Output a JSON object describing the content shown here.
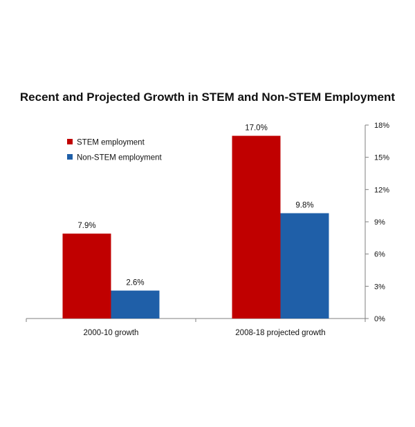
{
  "chart_data": {
    "type": "bar",
    "title": "Recent and Projected Growth in STEM and Non-STEM Employment",
    "categories": [
      "2000-10 growth",
      "2008-18 projected growth"
    ],
    "series": [
      {
        "name": "STEM employment",
        "values": [
          7.9,
          17.0
        ],
        "labels": [
          "7.9%",
          "17.0%"
        ],
        "color": "#c00000"
      },
      {
        "name": "Non-STEM employment",
        "values": [
          2.6,
          9.8
        ],
        "labels": [
          "2.6%",
          "9.8%"
        ],
        "color": "#1f5fa8"
      }
    ],
    "ylim": [
      0,
      18
    ],
    "yticks": [
      0,
      3,
      6,
      9,
      12,
      15,
      18
    ],
    "ytick_labels": [
      "0%",
      "3%",
      "6%",
      "9%",
      "12%",
      "15%",
      "18%"
    ],
    "y_axis_side": "right",
    "xlabel": "",
    "ylabel": "",
    "grid": false,
    "legend_position": "top-left"
  }
}
